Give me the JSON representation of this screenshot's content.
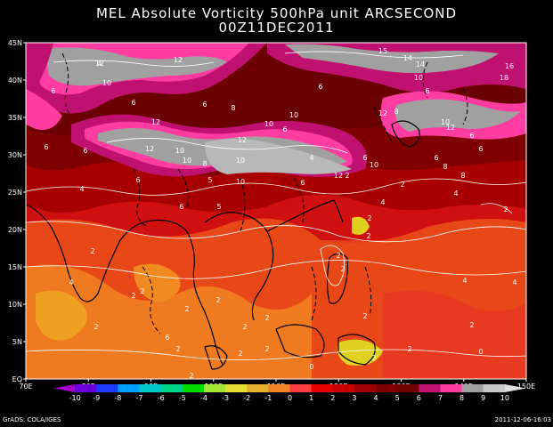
{
  "title": {
    "line1": "MEL Absolute Vorticity 500hPa unit ARCSECOND",
    "line2": "00Z11DEC2011"
  },
  "lat_labels": [
    "45N",
    "40N",
    "35N",
    "30N",
    "25N",
    "20N",
    "15N",
    "10N",
    "5N",
    "EQ"
  ],
  "lon_labels": [
    "70E",
    "80E",
    "90E",
    "100E",
    "110E",
    "120E",
    "130E",
    "140E",
    "150E"
  ],
  "colorbar": {
    "labels": [
      "-10",
      "-9",
      "-8",
      "-7",
      "-6",
      "-5",
      "-4",
      "-3",
      "-2",
      "-1",
      "0",
      "1",
      "2",
      "3",
      "4",
      "5",
      "6",
      "7",
      "8",
      "9",
      "10"
    ],
    "colors": [
      "#a000c8",
      "#6e00dc",
      "#1e3cff",
      "#00a0ff",
      "#00c8c8",
      "#00d28c",
      "#00dc00",
      "#a0e632",
      "#e6dc32",
      "#e6af2d",
      "#f08228",
      "#fa3c3c",
      "#e60000",
      "#c80000",
      "#a00000",
      "#800000",
      "#6e0000",
      "#c01070",
      "#ff3ca0",
      "#a0a0a0",
      "#c8c8c8",
      "#e0e0e0"
    ]
  },
  "contour_labels": [
    "12",
    "12",
    "10",
    "12",
    "12",
    "10",
    "15",
    "14",
    "14",
    "10",
    "16",
    "18",
    "6",
    "6",
    "6",
    "6",
    "10",
    "8",
    "10",
    "6",
    "10",
    "12",
    "12",
    "10",
    "6",
    "10",
    "6",
    "4",
    "8",
    "10",
    "6",
    "5",
    "12",
    "6",
    "6",
    "12",
    "6",
    "6",
    "8",
    "10",
    "4",
    "6",
    "5",
    "6",
    "4",
    "2",
    "6",
    "8",
    "8",
    "2",
    "4",
    "2",
    "2",
    "2",
    "4",
    "2",
    "2",
    "2",
    "2",
    "2",
    "2",
    "2",
    "2",
    "4",
    "4",
    "2",
    "2",
    "2",
    "2",
    "2",
    "0",
    "2",
    "2",
    "2",
    "0",
    "2",
    "2",
    "6",
    "4"
  ],
  "footer": {
    "credit": "GrADS: COLA/IGES",
    "stamp": "2011-12-06-16:03"
  }
}
